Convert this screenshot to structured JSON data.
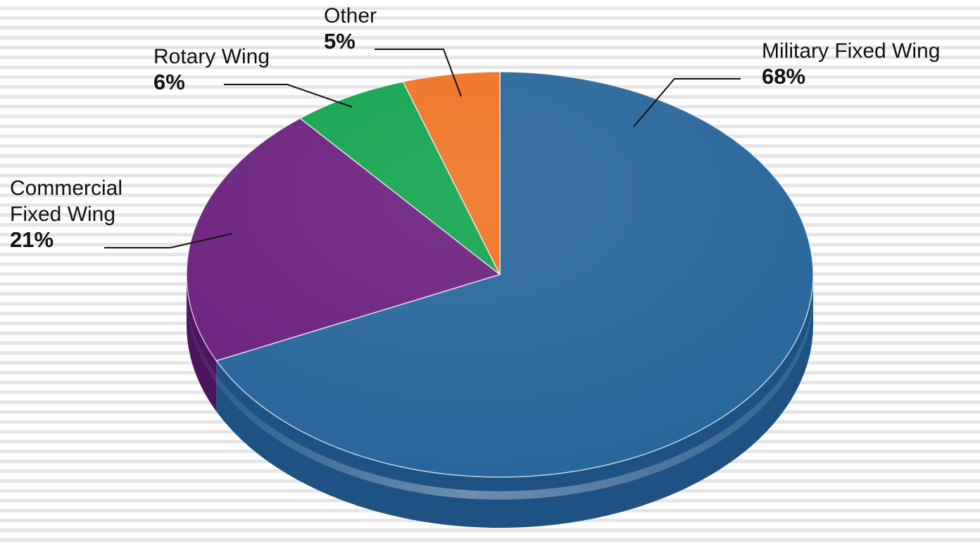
{
  "chart_data": {
    "type": "pie",
    "title": "",
    "labels": [
      "Military Fixed Wing",
      "Commercial Fixed Wing",
      "Rotary Wing",
      "Other"
    ],
    "values": [
      68,
      21,
      6,
      5
    ],
    "value_labels": [
      "68%",
      "21%",
      "6%",
      "5%"
    ],
    "label_lines": [
      [
        "Military Fixed Wing"
      ],
      [
        "Commercial",
        "Fixed Wing"
      ],
      [
        "Rotary Wing"
      ],
      [
        "Other"
      ]
    ],
    "colors": [
      "#276599",
      "#6a1f7c",
      "#10a34c",
      "#ef7121"
    ],
    "side_colors": [
      "#1d5282",
      "#4d1460",
      "#0b7a38",
      "#b8561a"
    ],
    "style": "3d",
    "legend": "none",
    "start": "top, clockwise"
  }
}
